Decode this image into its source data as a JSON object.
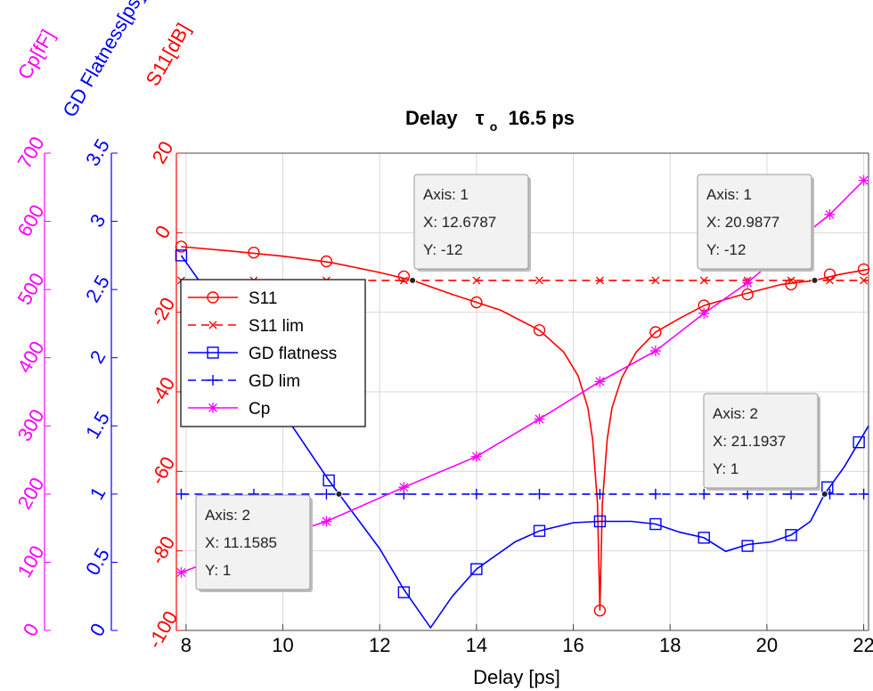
{
  "title": {
    "prefix": "Delay",
    "tau": "τ",
    "sub": "o",
    "value": "16.5 ps"
  },
  "colors": {
    "s11": "#ff0000",
    "gd": "#0000ff",
    "cp": "#ff00ff",
    "grid": "#d9d9d9",
    "axis_black": "#000000"
  },
  "chart_data": {
    "type": "line",
    "xlabel": "Delay [ps]",
    "xlim": [
      7.8,
      22.1
    ],
    "x_ticks": [
      8,
      10,
      12,
      14,
      16,
      18,
      20,
      22
    ],
    "y_axes": [
      {
        "id": "s11",
        "label": "S11[dB]",
        "lim": [
          -100,
          20
        ],
        "ticks": [
          -100,
          -80,
          -60,
          -40,
          -20,
          0,
          20
        ],
        "tick_labels": [
          "-100",
          "-80",
          "-60",
          "-40",
          "-20",
          "0",
          "20"
        ]
      },
      {
        "id": "gd",
        "label": "GD Flatness[ps]",
        "lim": [
          0,
          3.5
        ],
        "ticks": [
          0,
          0.5,
          1,
          1.5,
          2,
          2.5,
          3,
          3.5
        ],
        "tick_labels": [
          "0",
          "0.5",
          "1",
          "1.5",
          "2",
          "2.5",
          "3",
          "3.5"
        ]
      },
      {
        "id": "cp",
        "label": "Cp[fF]",
        "lim": [
          0,
          700
        ],
        "ticks": [
          0,
          100,
          200,
          300,
          400,
          500,
          600,
          700
        ],
        "tick_labels": [
          "0",
          "100",
          "200",
          "300",
          "400",
          "500",
          "600",
          "700"
        ]
      }
    ],
    "series": [
      {
        "name": "S11",
        "axis": "s11",
        "color": "#ff0000",
        "style": "solid",
        "marker": "circle",
        "curve": [
          [
            7.9,
            -3.5
          ],
          [
            9,
            -4.7
          ],
          [
            10,
            -5.9
          ],
          [
            11,
            -7.5
          ],
          [
            12,
            -10
          ],
          [
            12.68,
            -12
          ],
          [
            13.5,
            -15.5
          ],
          [
            14.5,
            -19.5
          ],
          [
            15.3,
            -24.5
          ],
          [
            15.8,
            -30
          ],
          [
            16.1,
            -36
          ],
          [
            16.3,
            -44
          ],
          [
            16.4,
            -52
          ],
          [
            16.5,
            -68
          ],
          [
            16.55,
            -95
          ],
          [
            16.6,
            -68
          ],
          [
            16.7,
            -52
          ],
          [
            16.8,
            -44
          ],
          [
            17,
            -36.5
          ],
          [
            17.3,
            -30
          ],
          [
            17.7,
            -25
          ],
          [
            18.2,
            -21.5
          ],
          [
            18.7,
            -18.3
          ],
          [
            19.5,
            -15.5
          ],
          [
            20.3,
            -13
          ],
          [
            20.99,
            -12
          ],
          [
            21.5,
            -10.5
          ],
          [
            22.1,
            -9.2
          ]
        ],
        "markers": [
          [
            7.9,
            -3.5
          ],
          [
            9.4,
            -5
          ],
          [
            10.9,
            -7.2
          ],
          [
            12.5,
            -11
          ],
          [
            14,
            -17.5
          ],
          [
            15.3,
            -24.5
          ],
          [
            16.55,
            -95
          ],
          [
            17.7,
            -25
          ],
          [
            18.7,
            -18.3
          ],
          [
            19.6,
            -15.5
          ],
          [
            20.5,
            -13
          ],
          [
            21.3,
            -10.5
          ],
          [
            22,
            -9.2
          ]
        ]
      },
      {
        "name": "S11 lim",
        "axis": "s11",
        "color": "#ff0000",
        "style": "dashed",
        "marker": "x",
        "curve": [
          [
            7.9,
            -12
          ],
          [
            22.1,
            -12
          ]
        ],
        "markers": [
          [
            7.9,
            -12
          ],
          [
            9.4,
            -12
          ],
          [
            10.9,
            -12
          ],
          [
            12.5,
            -12
          ],
          [
            14,
            -12
          ],
          [
            15.3,
            -12
          ],
          [
            16.55,
            -12
          ],
          [
            17.7,
            -12
          ],
          [
            18.7,
            -12
          ],
          [
            19.6,
            -12
          ],
          [
            20.5,
            -12
          ],
          [
            21.3,
            -12
          ],
          [
            22,
            -12
          ]
        ]
      },
      {
        "name": "GD flatness",
        "axis": "gd",
        "color": "#0000ff",
        "style": "solid",
        "marker": "square",
        "curve": [
          [
            7.9,
            2.75
          ],
          [
            9,
            2.2
          ],
          [
            10,
            1.6
          ],
          [
            10.95,
            1.1
          ],
          [
            11.16,
            1
          ],
          [
            12,
            0.6
          ],
          [
            12.5,
            0.3
          ],
          [
            13.05,
            0.02
          ],
          [
            13.5,
            0.25
          ],
          [
            14,
            0.45
          ],
          [
            14.8,
            0.65
          ],
          [
            15.3,
            0.73
          ],
          [
            16,
            0.79
          ],
          [
            16.55,
            0.8
          ],
          [
            17.2,
            0.8
          ],
          [
            17.7,
            0.78
          ],
          [
            18.2,
            0.72
          ],
          [
            18.7,
            0.68
          ],
          [
            19.15,
            0.58
          ],
          [
            19.6,
            0.63
          ],
          [
            20.1,
            0.65
          ],
          [
            20.5,
            0.7
          ],
          [
            20.9,
            0.8
          ],
          [
            21.19,
            1
          ],
          [
            21.6,
            1.2
          ],
          [
            22.1,
            1.5
          ]
        ],
        "markers": [
          [
            7.9,
            2.75
          ],
          [
            10.95,
            1.1
          ],
          [
            12.5,
            0.28
          ],
          [
            14,
            0.45
          ],
          [
            15.3,
            0.73
          ],
          [
            16.55,
            0.8
          ],
          [
            17.7,
            0.78
          ],
          [
            18.7,
            0.68
          ],
          [
            19.6,
            0.62
          ],
          [
            20.5,
            0.7
          ],
          [
            21.25,
            1.05
          ],
          [
            21.9,
            1.38
          ]
        ]
      },
      {
        "name": "GD lim",
        "axis": "gd",
        "color": "#0000ff",
        "style": "dashed",
        "marker": "plus",
        "curve": [
          [
            7.9,
            1
          ],
          [
            22.1,
            1
          ]
        ],
        "markers": [
          [
            7.9,
            1
          ],
          [
            9.4,
            1
          ],
          [
            10.9,
            1
          ],
          [
            12.5,
            1
          ],
          [
            14,
            1
          ],
          [
            15.3,
            1
          ],
          [
            16.55,
            1
          ],
          [
            17.7,
            1
          ],
          [
            18.7,
            1
          ],
          [
            19.6,
            1
          ],
          [
            20.5,
            1
          ],
          [
            21.3,
            1
          ],
          [
            22,
            1
          ]
        ]
      },
      {
        "name": "Cp",
        "axis": "cp",
        "color": "#ff00ff",
        "style": "solid",
        "marker": "asterisk",
        "curve": [
          [
            7.9,
            85
          ],
          [
            9.4,
            125
          ],
          [
            10.9,
            160
          ],
          [
            12.5,
            210
          ],
          [
            14,
            255
          ],
          [
            15.3,
            310
          ],
          [
            16.55,
            365
          ],
          [
            17.7,
            410
          ],
          [
            18.7,
            465
          ],
          [
            19.6,
            510
          ],
          [
            20.5,
            565
          ],
          [
            21.3,
            610
          ],
          [
            22,
            660
          ]
        ],
        "markers": [
          [
            7.9,
            85
          ],
          [
            9.4,
            125
          ],
          [
            10.9,
            160
          ],
          [
            12.5,
            210
          ],
          [
            14,
            255
          ],
          [
            15.3,
            310
          ],
          [
            16.55,
            365
          ],
          [
            17.7,
            410
          ],
          [
            18.7,
            465
          ],
          [
            19.6,
            510
          ],
          [
            20.5,
            565
          ],
          [
            21.3,
            610
          ],
          [
            22,
            660
          ]
        ]
      }
    ],
    "legend": {
      "placement": "upper-left",
      "entries": [
        "S11",
        "S11 lim",
        "GD flatness",
        "GD lim",
        "Cp"
      ]
    },
    "datatips": [
      {
        "lines": [
          "Axis: 1",
          "X: 12.6787",
          "Y: -12"
        ],
        "point": [
          12.6787,
          -12
        ],
        "axis": "s11"
      },
      {
        "lines": [
          "Axis: 1",
          "X: 20.9877",
          "Y: -12"
        ],
        "point": [
          20.9877,
          -12
        ],
        "axis": "s11"
      },
      {
        "lines": [
          "Axis: 2",
          "X: 11.1585",
          "Y: 1"
        ],
        "point": [
          11.1585,
          1
        ],
        "axis": "gd"
      },
      {
        "lines": [
          "Axis: 2",
          "X: 21.1937",
          "Y: 1"
        ],
        "point": [
          21.1937,
          1
        ],
        "axis": "gd"
      }
    ],
    "grid": true
  }
}
